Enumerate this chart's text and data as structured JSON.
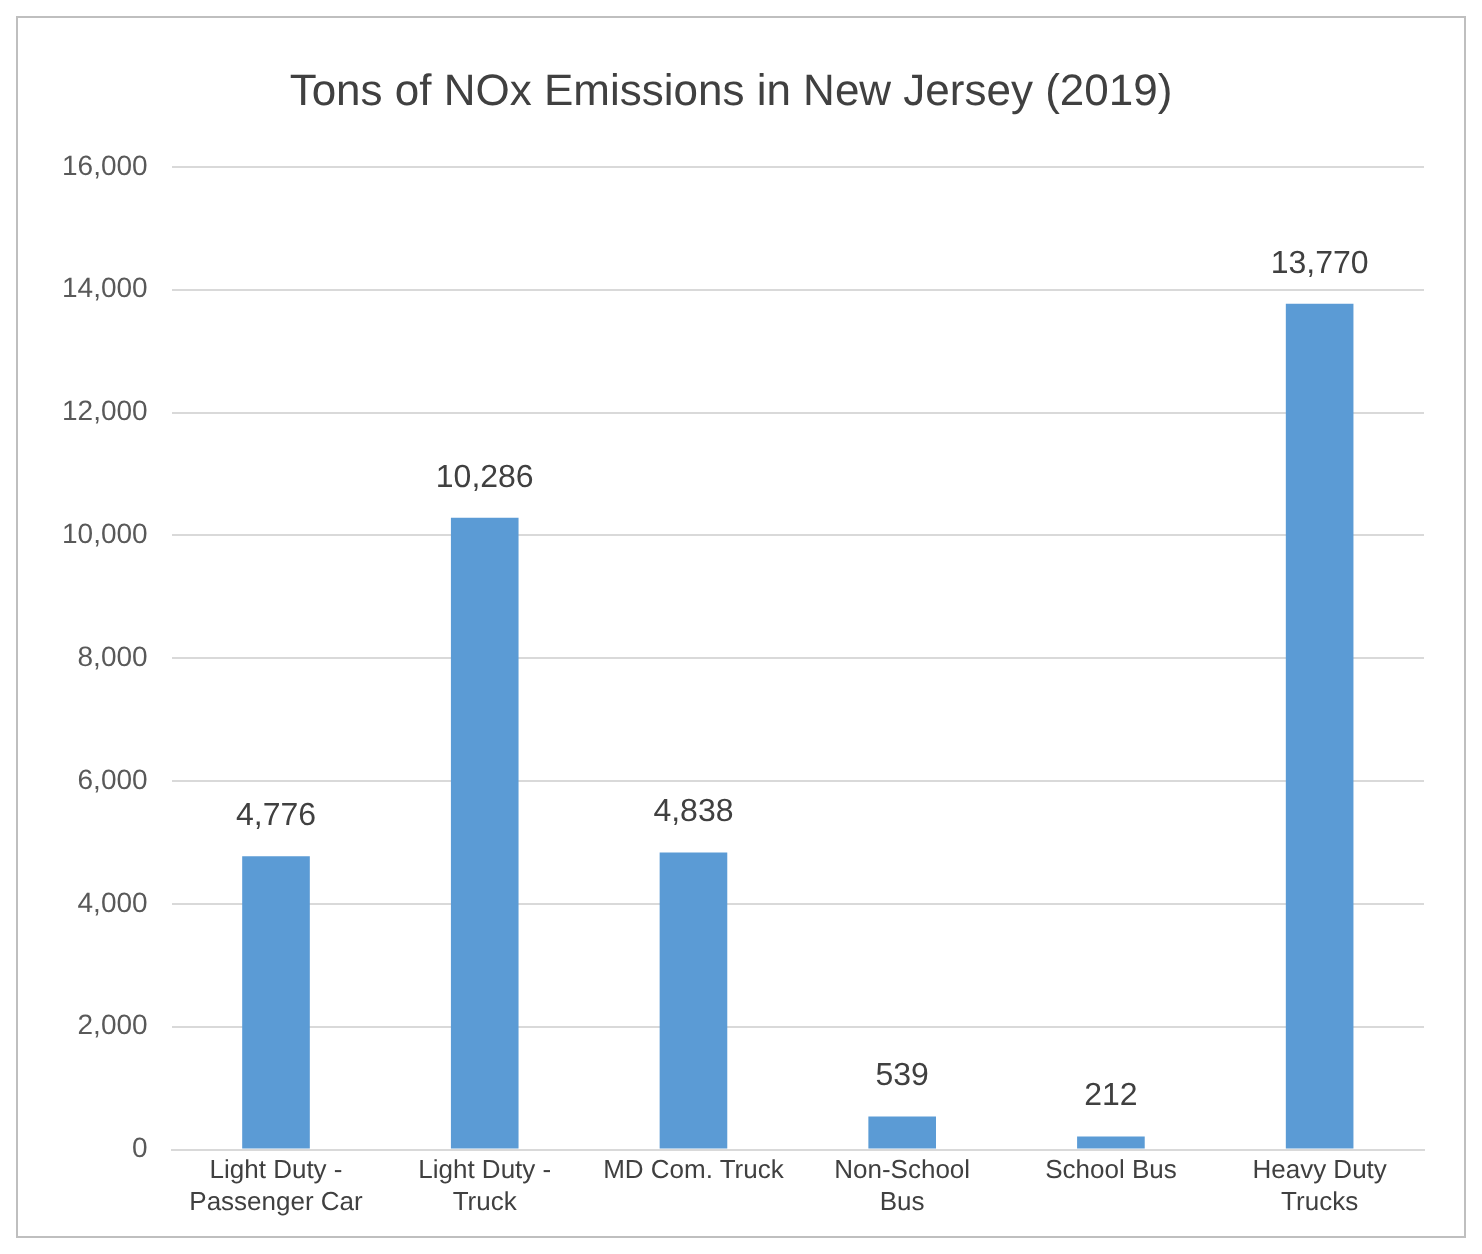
{
  "chart_data": {
    "type": "bar",
    "title": "Tons of NOx Emissions in New Jersey (2019)",
    "categories": [
      "Light Duty - Passenger Car",
      "Light Duty - Truck",
      "MD Com. Truck",
      "Non-School Bus",
      "School Bus",
      "Heavy Duty Trucks"
    ],
    "values": [
      4776,
      10286,
      4838,
      539,
      212,
      13770
    ],
    "value_labels": [
      "4,776",
      "10,286",
      "4,838",
      "539",
      "212",
      "13,770"
    ],
    "color": "#5b9bd5",
    "ylim": [
      0,
      16000
    ],
    "yticks": [
      {
        "value": 0,
        "label": "0"
      },
      {
        "value": 2000,
        "label": "2,000"
      },
      {
        "value": 4000,
        "label": "4,000"
      },
      {
        "value": 6000,
        "label": "6,000"
      },
      {
        "value": 8000,
        "label": "8,000"
      },
      {
        "value": 10000,
        "label": "10,000"
      },
      {
        "value": 12000,
        "label": "12,000"
      },
      {
        "value": 14000,
        "label": "14,000"
      },
      {
        "value": 16000,
        "label": "16,000"
      }
    ],
    "grid": "y"
  }
}
